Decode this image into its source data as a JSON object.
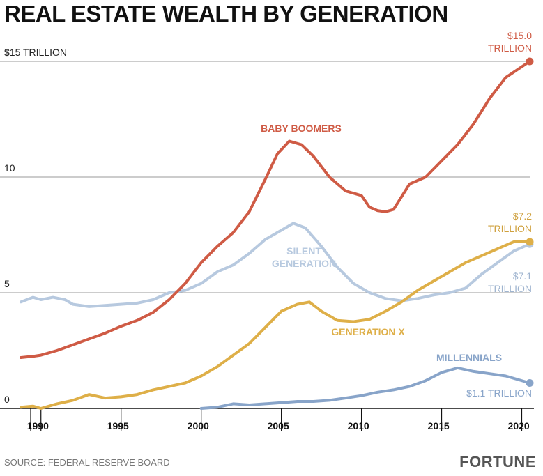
{
  "title": "REAL ESTATE WEALTH BY GENERATION",
  "source": "SOURCE: FEDERAL RESERVE BOARD",
  "brand": "FORTUNE",
  "chart_data": {
    "type": "line",
    "title": "REAL ESTATE WEALTH BY GENERATION",
    "ylim": [
      0,
      15
    ],
    "xlim": [
      1988.75,
      2020.5
    ],
    "grid": true,
    "y_ticks": [
      {
        "value": 15,
        "label": "$15 TRILLION"
      },
      {
        "value": 10,
        "label": "10"
      },
      {
        "value": 5,
        "label": "5"
      },
      {
        "value": 0,
        "label": "0"
      }
    ],
    "x_ticks": [
      {
        "value": 1990,
        "label": "1990"
      },
      {
        "value": 1995,
        "label": "1995"
      },
      {
        "value": 2000,
        "label": "2000"
      },
      {
        "value": 2005,
        "label": "2005"
      },
      {
        "value": 2010,
        "label": "2010"
      },
      {
        "value": 2015,
        "label": "2015"
      },
      {
        "value": 2020,
        "label": "2020"
      }
    ],
    "series": [
      {
        "name": "SILENT GENERATION",
        "color": "#b7c9df",
        "end_label": [
          "$7.1",
          "TRILLION"
        ],
        "points": [
          [
            1988.75,
            4.6
          ],
          [
            1989.5,
            4.8
          ],
          [
            1990,
            4.7
          ],
          [
            1990.75,
            4.8
          ],
          [
            1991.5,
            4.7
          ],
          [
            1992,
            4.5
          ],
          [
            1993,
            4.4
          ],
          [
            1994,
            4.45
          ],
          [
            1995,
            4.5
          ],
          [
            1996,
            4.55
          ],
          [
            1997,
            4.7
          ],
          [
            1998,
            5.0
          ],
          [
            1999,
            5.1
          ],
          [
            2000,
            5.4
          ],
          [
            2001,
            5.9
          ],
          [
            2002,
            6.2
          ],
          [
            2003,
            6.7
          ],
          [
            2004,
            7.3
          ],
          [
            2005,
            7.7
          ],
          [
            2005.75,
            8.0
          ],
          [
            2006.5,
            7.8
          ],
          [
            2007.5,
            7.0
          ],
          [
            2008.5,
            6.1
          ],
          [
            2009.5,
            5.4
          ],
          [
            2010.5,
            5.0
          ],
          [
            2011.5,
            4.75
          ],
          [
            2012.5,
            4.65
          ],
          [
            2013.5,
            4.75
          ],
          [
            2014.5,
            4.9
          ],
          [
            2015.5,
            5.0
          ],
          [
            2016.5,
            5.2
          ],
          [
            2017.5,
            5.8
          ],
          [
            2018.5,
            6.3
          ],
          [
            2019.5,
            6.8
          ],
          [
            2020.5,
            7.1
          ]
        ]
      },
      {
        "name": "BABY BOOMERS",
        "color": "#cf5b45",
        "end_label": [
          "$15.0",
          "TRILLION"
        ],
        "points": [
          [
            1988.75,
            2.2
          ],
          [
            1989.5,
            2.25
          ],
          [
            1990,
            2.3
          ],
          [
            1991,
            2.5
          ],
          [
            1992,
            2.75
          ],
          [
            1993,
            3.0
          ],
          [
            1994,
            3.25
          ],
          [
            1995,
            3.55
          ],
          [
            1996,
            3.8
          ],
          [
            1997,
            4.15
          ],
          [
            1998,
            4.7
          ],
          [
            1999,
            5.4
          ],
          [
            2000,
            6.3
          ],
          [
            2001,
            7.0
          ],
          [
            2002,
            7.6
          ],
          [
            2003,
            8.5
          ],
          [
            2004,
            9.9
          ],
          [
            2004.75,
            11.0
          ],
          [
            2005.5,
            11.55
          ],
          [
            2006.25,
            11.4
          ],
          [
            2007,
            10.9
          ],
          [
            2008,
            10.0
          ],
          [
            2009,
            9.4
          ],
          [
            2010,
            9.2
          ],
          [
            2010.5,
            8.7
          ],
          [
            2011,
            8.55
          ],
          [
            2011.5,
            8.5
          ],
          [
            2012,
            8.6
          ],
          [
            2013,
            9.7
          ],
          [
            2014,
            10.0
          ],
          [
            2015,
            10.7
          ],
          [
            2016,
            11.4
          ],
          [
            2017,
            12.3
          ],
          [
            2018,
            13.4
          ],
          [
            2019,
            14.3
          ],
          [
            2020.5,
            15.0
          ]
        ]
      },
      {
        "name": "GENERATION X",
        "color": "#deaf48",
        "end_label": [
          "$7.2",
          "TRILLION"
        ],
        "points": [
          [
            1988.75,
            0.05
          ],
          [
            1989.5,
            0.1
          ],
          [
            1990,
            0.0
          ],
          [
            1991,
            0.2
          ],
          [
            1992,
            0.35
          ],
          [
            1993,
            0.6
          ],
          [
            1994,
            0.45
          ],
          [
            1995,
            0.5
          ],
          [
            1996,
            0.6
          ],
          [
            1997,
            0.8
          ],
          [
            1998,
            0.95
          ],
          [
            1999,
            1.1
          ],
          [
            2000,
            1.4
          ],
          [
            2001,
            1.8
          ],
          [
            2002,
            2.3
          ],
          [
            2003,
            2.8
          ],
          [
            2004,
            3.5
          ],
          [
            2005,
            4.2
          ],
          [
            2006,
            4.5
          ],
          [
            2006.75,
            4.6
          ],
          [
            2007.5,
            4.2
          ],
          [
            2008.5,
            3.8
          ],
          [
            2009.5,
            3.75
          ],
          [
            2010.5,
            3.85
          ],
          [
            2011.5,
            4.2
          ],
          [
            2012.5,
            4.6
          ],
          [
            2013.5,
            5.1
          ],
          [
            2014.5,
            5.5
          ],
          [
            2015.5,
            5.9
          ],
          [
            2016.5,
            6.3
          ],
          [
            2017.5,
            6.6
          ],
          [
            2018.5,
            6.9
          ],
          [
            2019.5,
            7.2
          ],
          [
            2020.5,
            7.2
          ]
        ]
      },
      {
        "name": "MILLENNIALS",
        "color": "#88a4c9",
        "end_label": [
          "$1.1 TRILLION"
        ],
        "points": [
          [
            2000,
            0.0
          ],
          [
            2001,
            0.05
          ],
          [
            2002,
            0.2
          ],
          [
            2003,
            0.15
          ],
          [
            2004,
            0.2
          ],
          [
            2005,
            0.25
          ],
          [
            2006,
            0.3
          ],
          [
            2007,
            0.3
          ],
          [
            2008,
            0.35
          ],
          [
            2009,
            0.45
          ],
          [
            2010,
            0.55
          ],
          [
            2011,
            0.7
          ],
          [
            2012,
            0.8
          ],
          [
            2013,
            0.95
          ],
          [
            2014,
            1.2
          ],
          [
            2015,
            1.55
          ],
          [
            2016,
            1.75
          ],
          [
            2017,
            1.6
          ],
          [
            2018,
            1.5
          ],
          [
            2019,
            1.4
          ],
          [
            2020.5,
            1.1
          ]
        ]
      }
    ]
  }
}
